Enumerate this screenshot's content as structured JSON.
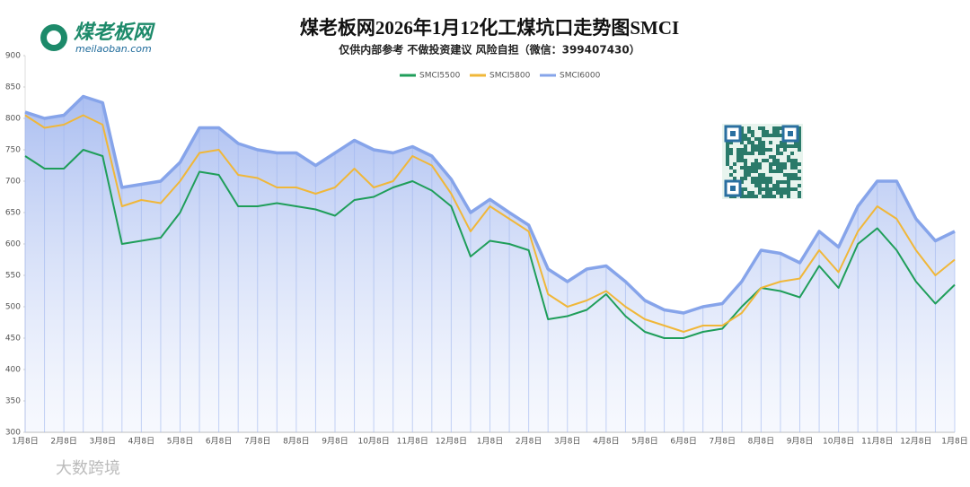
{
  "logo": {
    "name": "煤老板网",
    "domain": "meilaoban.com"
  },
  "watermark": "大数跨境",
  "chart_data": {
    "type": "line",
    "title": "煤老板网2026年1月12化工煤坑口走势图SMCI",
    "subtitle": "仅供内部参考 不做投资建议 风险自担（微信：399407430）",
    "categories": [
      "1月8日",
      null,
      "2月8日",
      null,
      "3月8日",
      null,
      "4月8日",
      null,
      "5月8日",
      null,
      "6月8日",
      null,
      "7月8日",
      null,
      "8月8日",
      null,
      "9月8日",
      null,
      "10月8日",
      null,
      "11月8日",
      null,
      "12月8日",
      null,
      "1月8日",
      null,
      "2月8日",
      null,
      "3月8日",
      null,
      "4月8日",
      null,
      "5月8日",
      null,
      "6月8日",
      null,
      "7月8日",
      null,
      "8月8日",
      null,
      "9月8日",
      null,
      "10月8日",
      null,
      "11月8日",
      null,
      "12月8日",
      null,
      "1月8日"
    ],
    "series": [
      {
        "name": "SMCI5500",
        "color": "#1f9e5a",
        "values": [
          740,
          720,
          720,
          750,
          740,
          600,
          605,
          610,
          650,
          715,
          710,
          660,
          660,
          665,
          660,
          655,
          645,
          670,
          675,
          690,
          700,
          685,
          660,
          580,
          605,
          600,
          590,
          480,
          485,
          495,
          520,
          485,
          460,
          450,
          450,
          460,
          465,
          500,
          530,
          525,
          515,
          565,
          530,
          600,
          625,
          590,
          540,
          505,
          535
        ]
      },
      {
        "name": "SMCI5800",
        "color": "#f0b739",
        "values": [
          805,
          785,
          790,
          805,
          790,
          660,
          670,
          665,
          700,
          745,
          750,
          710,
          705,
          690,
          690,
          680,
          690,
          720,
          690,
          700,
          740,
          725,
          680,
          620,
          660,
          640,
          620,
          520,
          500,
          510,
          525,
          500,
          480,
          470,
          460,
          470,
          470,
          490,
          530,
          540,
          545,
          590,
          555,
          620,
          660,
          640,
          590,
          550,
          575
        ]
      },
      {
        "name": "SMCI6000",
        "color": "#86a4ea",
        "values": [
          810,
          800,
          805,
          835,
          825,
          690,
          695,
          700,
          730,
          785,
          785,
          760,
          750,
          745,
          745,
          725,
          745,
          765,
          750,
          745,
          755,
          740,
          703,
          650,
          671,
          650,
          630,
          560,
          540,
          560,
          565,
          540,
          510,
          495,
          490,
          500,
          505,
          540,
          590,
          585,
          570,
          620,
          595,
          660,
          700,
          700,
          640,
          605,
          620
        ]
      }
    ],
    "ylim": [
      300,
      900
    ],
    "yticks": [
      300,
      350,
      400,
      450,
      500,
      550,
      600,
      650,
      700,
      750,
      800,
      850,
      900
    ],
    "legend": "top",
    "grid": false
  }
}
